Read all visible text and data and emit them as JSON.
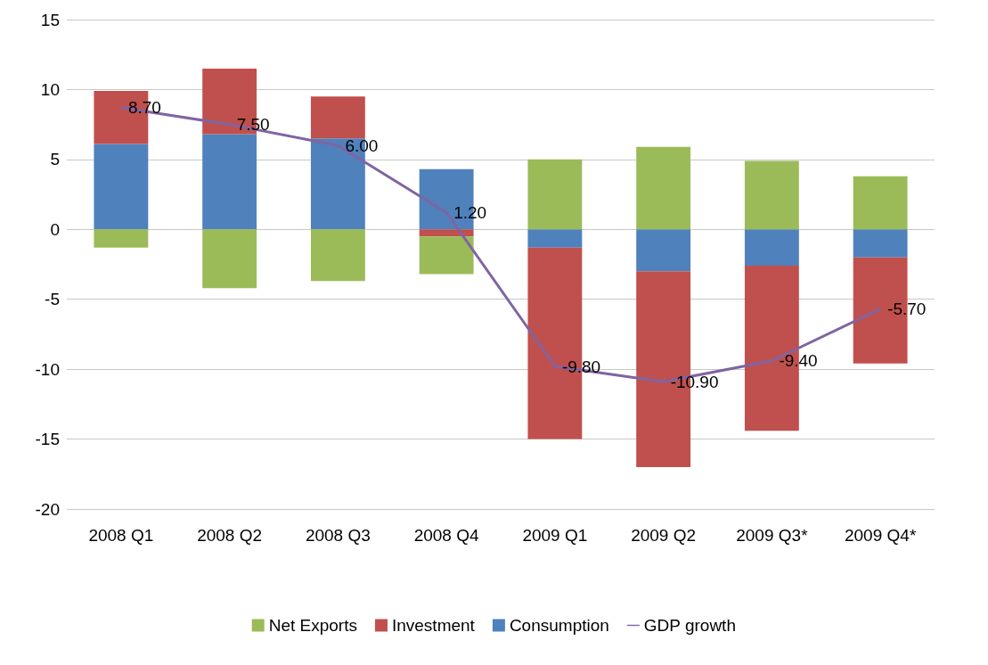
{
  "chart_data": {
    "type": "bar",
    "stacked": true,
    "categories": [
      "2008 Q1",
      "2008 Q2",
      "2008 Q3",
      "2008 Q4",
      "2009 Q1",
      "2009 Q2",
      "2009 Q3*",
      "2009 Q4*"
    ],
    "series": [
      {
        "name": "Consumption",
        "color": "#4f81bd",
        "values": [
          6.1,
          6.8,
          6.5,
          4.3,
          -1.3,
          -3.0,
          -2.6,
          -2.0
        ]
      },
      {
        "name": "Investment",
        "color": "#c0504d",
        "values": [
          3.8,
          4.7,
          3.0,
          -0.5,
          -13.7,
          -14.0,
          -11.8,
          -7.6
        ]
      },
      {
        "name": "Net Exports",
        "color": "#9bbb59",
        "values": [
          -1.3,
          -4.2,
          -3.7,
          -2.7,
          5.0,
          5.9,
          4.9,
          3.8
        ]
      },
      {
        "name": "GDP growth",
        "type": "line",
        "color": "#8064a2",
        "marker": "none",
        "values": [
          8.7,
          7.5,
          6.0,
          1.2,
          -9.8,
          -10.9,
          -9.4,
          -5.7
        ],
        "value_labels": [
          "8.70",
          "7.50",
          "6.00",
          "1.20",
          "-9.80",
          "-10.90",
          "-9.40",
          "-5.70"
        ]
      }
    ],
    "ylim": [
      -20,
      15
    ],
    "yticks": [
      -20,
      -15,
      -10,
      -5,
      0,
      5,
      10,
      15
    ],
    "grid": "y",
    "legend": "bottom"
  }
}
